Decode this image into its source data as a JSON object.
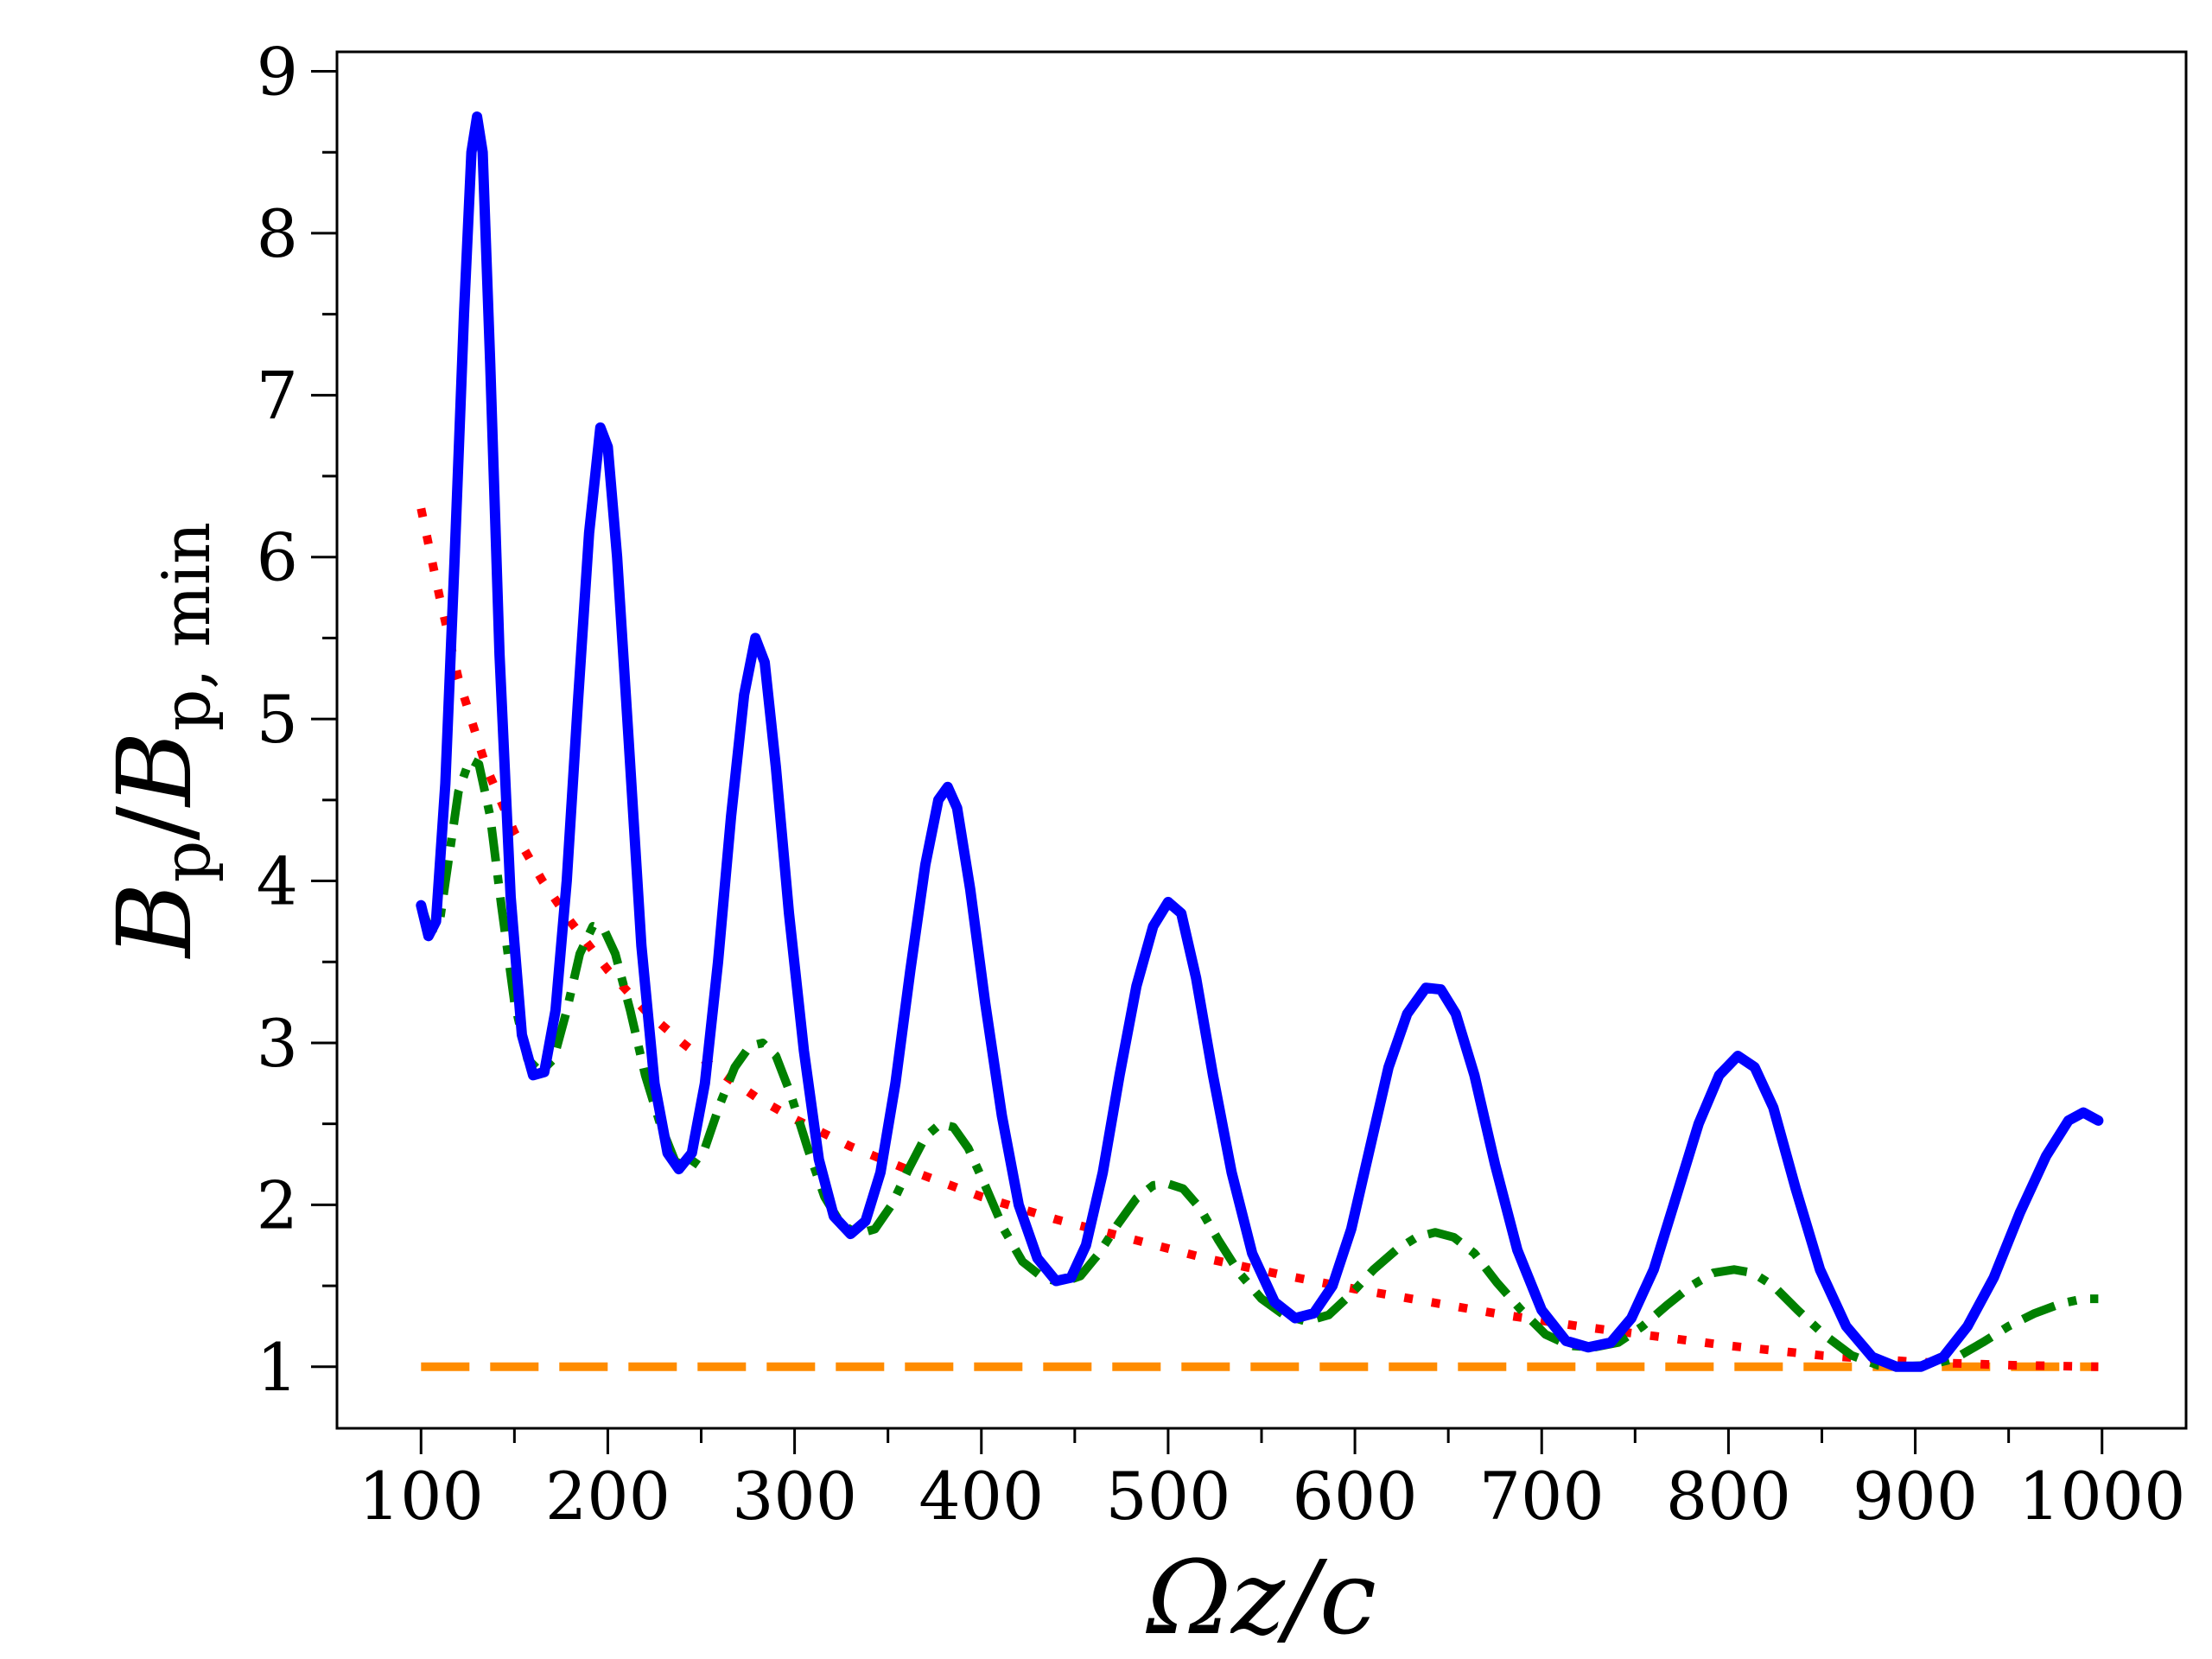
{
  "chart_data": {
    "type": "line",
    "xlabel": "Ωz/c",
    "ylabel_main": "B",
    "ylabel_sub": "p",
    "ylabel_sep": "/",
    "ylabel_main2": "B",
    "ylabel_sub2": "p, min",
    "xlim": [
      55,
      1045
    ],
    "ylim": [
      0.62,
      9.12
    ],
    "xticks": [
      100,
      200,
      300,
      400,
      500,
      600,
      700,
      800,
      900,
      1000
    ],
    "xtick_labels": [
      "100",
      "200",
      "300",
      "400",
      "500",
      "600",
      "700",
      "800",
      "900",
      "1000"
    ],
    "yticks": [
      1,
      2,
      3,
      4,
      5,
      6,
      7,
      8,
      9
    ],
    "ytick_labels": [
      "1",
      "2",
      "3",
      "4",
      "5",
      "6",
      "7",
      "8",
      "9"
    ],
    "grid": false,
    "series": [
      {
        "style": "solid",
        "color": "#0000ff",
        "points": [
          [
            100,
            3.85
          ],
          [
            104,
            3.66
          ],
          [
            108,
            3.75
          ],
          [
            113,
            4.6
          ],
          [
            118,
            6.0
          ],
          [
            123,
            7.5
          ],
          [
            127,
            8.5
          ],
          [
            130,
            8.72
          ],
          [
            133,
            8.5
          ],
          [
            137,
            7.2
          ],
          [
            142,
            5.4
          ],
          [
            148,
            3.9
          ],
          [
            154,
            3.05
          ],
          [
            160,
            2.8
          ],
          [
            166,
            2.82
          ],
          [
            172,
            3.2
          ],
          [
            178,
            4.0
          ],
          [
            184,
            5.1
          ],
          [
            190,
            6.15
          ],
          [
            196,
            6.8
          ],
          [
            200,
            6.68
          ],
          [
            205,
            6.0
          ],
          [
            211,
            4.9
          ],
          [
            218,
            3.6
          ],
          [
            225,
            2.75
          ],
          [
            232,
            2.32
          ],
          [
            238,
            2.22
          ],
          [
            245,
            2.32
          ],
          [
            252,
            2.75
          ],
          [
            259,
            3.5
          ],
          [
            266,
            4.4
          ],
          [
            273,
            5.15
          ],
          [
            279,
            5.5
          ],
          [
            284,
            5.35
          ],
          [
            290,
            4.7
          ],
          [
            297,
            3.8
          ],
          [
            305,
            2.95
          ],
          [
            313,
            2.28
          ],
          [
            321,
            1.93
          ],
          [
            330,
            1.82
          ],
          [
            338,
            1.9
          ],
          [
            346,
            2.2
          ],
          [
            354,
            2.75
          ],
          [
            362,
            3.45
          ],
          [
            370,
            4.1
          ],
          [
            377,
            4.5
          ],
          [
            382,
            4.58
          ],
          [
            387,
            4.45
          ],
          [
            394,
            3.95
          ],
          [
            402,
            3.25
          ],
          [
            411,
            2.55
          ],
          [
            420,
            2.0
          ],
          [
            430,
            1.67
          ],
          [
            440,
            1.53
          ],
          [
            448,
            1.55
          ],
          [
            456,
            1.75
          ],
          [
            465,
            2.2
          ],
          [
            474,
            2.8
          ],
          [
            483,
            3.35
          ],
          [
            492,
            3.72
          ],
          [
            500,
            3.87
          ],
          [
            507,
            3.8
          ],
          [
            515,
            3.4
          ],
          [
            524,
            2.8
          ],
          [
            534,
            2.2
          ],
          [
            545,
            1.7
          ],
          [
            557,
            1.4
          ],
          [
            568,
            1.3
          ],
          [
            578,
            1.33
          ],
          [
            588,
            1.5
          ],
          [
            598,
            1.85
          ],
          [
            608,
            2.35
          ],
          [
            618,
            2.85
          ],
          [
            628,
            3.18
          ],
          [
            638,
            3.34
          ],
          [
            646,
            3.33
          ],
          [
            654,
            3.18
          ],
          [
            664,
            2.8
          ],
          [
            675,
            2.25
          ],
          [
            687,
            1.72
          ],
          [
            700,
            1.35
          ],
          [
            713,
            1.16
          ],
          [
            725,
            1.12
          ],
          [
            737,
            1.15
          ],
          [
            748,
            1.3
          ],
          [
            760,
            1.6
          ],
          [
            772,
            2.05
          ],
          [
            784,
            2.5
          ],
          [
            795,
            2.8
          ],
          [
            805,
            2.92
          ],
          [
            814,
            2.85
          ],
          [
            824,
            2.6
          ],
          [
            836,
            2.1
          ],
          [
            849,
            1.6
          ],
          [
            863,
            1.25
          ],
          [
            877,
            1.06
          ],
          [
            890,
            1.0
          ],
          [
            903,
            1.0
          ],
          [
            915,
            1.06
          ],
          [
            928,
            1.25
          ],
          [
            942,
            1.55
          ],
          [
            956,
            1.95
          ],
          [
            970,
            2.3
          ],
          [
            982,
            2.52
          ],
          [
            990,
            2.57
          ],
          [
            998,
            2.52
          ]
        ]
      },
      {
        "style": "dashdot",
        "color": "#008000",
        "points": [
          [
            100,
            3.85
          ],
          [
            105,
            3.68
          ],
          [
            110,
            3.75
          ],
          [
            115,
            4.15
          ],
          [
            120,
            4.55
          ],
          [
            126,
            4.75
          ],
          [
            131,
            4.72
          ],
          [
            137,
            4.4
          ],
          [
            143,
            3.85
          ],
          [
            150,
            3.25
          ],
          [
            157,
            2.9
          ],
          [
            164,
            2.82
          ],
          [
            171,
            2.9
          ],
          [
            178,
            3.2
          ],
          [
            185,
            3.55
          ],
          [
            192,
            3.72
          ],
          [
            198,
            3.7
          ],
          [
            204,
            3.55
          ],
          [
            212,
            3.2
          ],
          [
            220,
            2.8
          ],
          [
            228,
            2.5
          ],
          [
            236,
            2.27
          ],
          [
            244,
            2.22
          ],
          [
            252,
            2.35
          ],
          [
            260,
            2.62
          ],
          [
            268,
            2.85
          ],
          [
            276,
            2.98
          ],
          [
            283,
            3.0
          ],
          [
            290,
            2.92
          ],
          [
            298,
            2.68
          ],
          [
            307,
            2.35
          ],
          [
            316,
            2.05
          ],
          [
            325,
            1.88
          ],
          [
            334,
            1.82
          ],
          [
            343,
            1.85
          ],
          [
            352,
            2.0
          ],
          [
            361,
            2.22
          ],
          [
            370,
            2.42
          ],
          [
            378,
            2.5
          ],
          [
            385,
            2.48
          ],
          [
            393,
            2.35
          ],
          [
            402,
            2.12
          ],
          [
            412,
            1.85
          ],
          [
            422,
            1.65
          ],
          [
            433,
            1.55
          ],
          [
            443,
            1.52
          ],
          [
            453,
            1.56
          ],
          [
            463,
            1.7
          ],
          [
            473,
            1.88
          ],
          [
            483,
            2.04
          ],
          [
            492,
            2.12
          ],
          [
            500,
            2.13
          ],
          [
            508,
            2.1
          ],
          [
            517,
            1.98
          ],
          [
            527,
            1.78
          ],
          [
            538,
            1.58
          ],
          [
            550,
            1.42
          ],
          [
            562,
            1.32
          ],
          [
            574,
            1.28
          ],
          [
            586,
            1.32
          ],
          [
            598,
            1.45
          ],
          [
            610,
            1.6
          ],
          [
            622,
            1.72
          ],
          [
            633,
            1.8
          ],
          [
            643,
            1.83
          ],
          [
            653,
            1.8
          ],
          [
            664,
            1.7
          ],
          [
            676,
            1.52
          ],
          [
            689,
            1.35
          ],
          [
            702,
            1.2
          ],
          [
            715,
            1.13
          ],
          [
            728,
            1.12
          ],
          [
            741,
            1.15
          ],
          [
            754,
            1.25
          ],
          [
            767,
            1.38
          ],
          [
            780,
            1.5
          ],
          [
            792,
            1.58
          ],
          [
            803,
            1.6
          ],
          [
            813,
            1.58
          ],
          [
            824,
            1.5
          ],
          [
            837,
            1.35
          ],
          [
            851,
            1.2
          ],
          [
            866,
            1.07
          ],
          [
            880,
            1.01
          ],
          [
            893,
            1.0
          ],
          [
            907,
            1.01
          ],
          [
            921,
            1.05
          ],
          [
            936,
            1.15
          ],
          [
            950,
            1.25
          ],
          [
            964,
            1.33
          ],
          [
            978,
            1.39
          ],
          [
            990,
            1.42
          ],
          [
            998,
            1.42
          ]
        ]
      },
      {
        "style": "dotted",
        "color": "#ff0000",
        "points": [
          [
            100,
            6.3
          ],
          [
            110,
            5.75
          ],
          [
            120,
            5.25
          ],
          [
            135,
            4.7
          ],
          [
            150,
            4.3
          ],
          [
            165,
            4.0
          ],
          [
            180,
            3.75
          ],
          [
            200,
            3.45
          ],
          [
            220,
            3.2
          ],
          [
            240,
            3.0
          ],
          [
            260,
            2.82
          ],
          [
            280,
            2.66
          ],
          [
            300,
            2.53
          ],
          [
            330,
            2.36
          ],
          [
            360,
            2.22
          ],
          [
            400,
            2.05
          ],
          [
            440,
            1.91
          ],
          [
            480,
            1.79
          ],
          [
            520,
            1.67
          ],
          [
            560,
            1.57
          ],
          [
            600,
            1.48
          ],
          [
            640,
            1.4
          ],
          [
            680,
            1.32
          ],
          [
            720,
            1.25
          ],
          [
            760,
            1.19
          ],
          [
            800,
            1.13
          ],
          [
            850,
            1.07
          ],
          [
            900,
            1.03
          ],
          [
            950,
            1.01
          ],
          [
            998,
            1.0
          ]
        ]
      },
      {
        "style": "dashed",
        "color": "#ff8c00",
        "points": [
          [
            100,
            1.0
          ],
          [
            998,
            1.0
          ]
        ]
      }
    ]
  }
}
